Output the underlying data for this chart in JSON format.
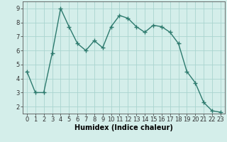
{
  "x": [
    0,
    1,
    2,
    3,
    4,
    5,
    6,
    7,
    8,
    9,
    10,
    11,
    12,
    13,
    14,
    15,
    16,
    17,
    18,
    19,
    20,
    21,
    22,
    23
  ],
  "y": [
    4.5,
    3.0,
    3.0,
    5.8,
    9.0,
    7.7,
    6.5,
    6.0,
    6.7,
    6.2,
    7.7,
    8.5,
    8.3,
    7.7,
    7.3,
    7.8,
    7.7,
    7.3,
    6.5,
    4.5,
    3.7,
    2.3,
    1.7,
    1.6
  ],
  "line_color": "#2d7a6e",
  "marker": "+",
  "marker_size": 4,
  "marker_linewidth": 1.0,
  "line_width": 1.0,
  "bg_color": "#d4eeea",
  "grid_color": "#aad4cf",
  "xlabel": "Humidex (Indice chaleur)",
  "xlim": [
    -0.5,
    23.5
  ],
  "ylim": [
    1.5,
    9.5
  ],
  "yticks": [
    2,
    3,
    4,
    5,
    6,
    7,
    8,
    9
  ],
  "xticks": [
    0,
    1,
    2,
    3,
    4,
    5,
    6,
    7,
    8,
    9,
    10,
    11,
    12,
    13,
    14,
    15,
    16,
    17,
    18,
    19,
    20,
    21,
    22,
    23
  ],
  "xlabel_fontsize": 7,
  "tick_fontsize": 6
}
